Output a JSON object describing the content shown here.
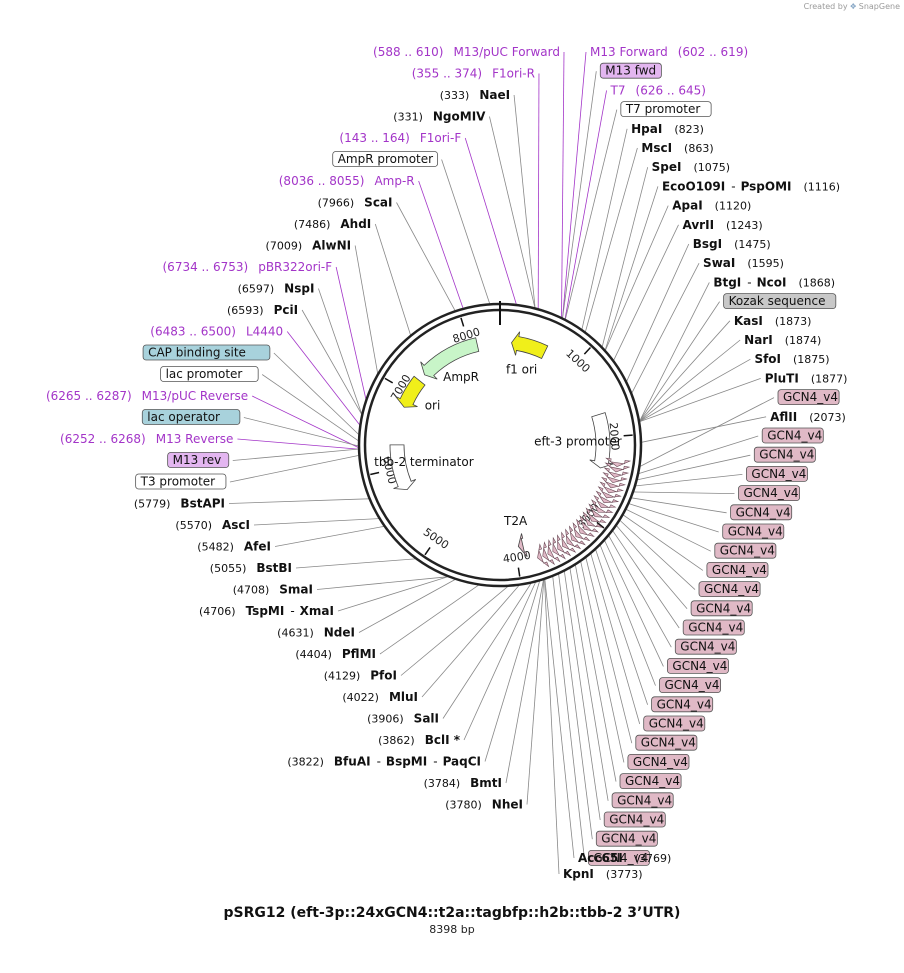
{
  "credit": {
    "text": "Created by",
    "brand": "SnapGene"
  },
  "title": "pSRG12 (eft-3p::24xGCN4::t2a::tagbfp::h2b::tbb-2 3’UTR)",
  "length_label": "8398 bp",
  "colors": {
    "enzyme": "#111111",
    "primer": "#a335c8",
    "feature_box": "#ffffff",
    "gcn4": "#e0b9c6",
    "cap": "#a8d2dc",
    "kozak": "#c8c8c8",
    "m13rev": "#e3b6f0",
    "ampr_arrow": "#c8f5c8",
    "ori_arrow": "#f0ef1a",
    "f1ori_arrow": "#f0ef1a"
  },
  "ticks": [
    {
      "bp": 1000,
      "label": "1000"
    },
    {
      "bp": 2000,
      "label": "2000"
    },
    {
      "bp": 3000,
      "label": "3000"
    },
    {
      "bp": 4000,
      "label": "4000"
    },
    {
      "bp": 5000,
      "label": "5000"
    },
    {
      "bp": 6000,
      "label": "6000"
    },
    {
      "bp": 7000,
      "label": "7000"
    },
    {
      "bp": 8000,
      "label": "8000"
    }
  ],
  "inner_features": [
    {
      "name": "AmpR",
      "label": "AmpR",
      "start": 7300,
      "end": 8100,
      "kind": "arrow",
      "dir": -1,
      "color": "#c8f5c8"
    },
    {
      "name": "ori",
      "label": "ori",
      "start": 6800,
      "end": 7200,
      "kind": "arrow",
      "dir": -1,
      "color": "#f0ef1a"
    },
    {
      "name": "f1 ori",
      "label": "f1 ori",
      "start": 150,
      "end": 600,
      "kind": "arrow",
      "dir": -1,
      "color": "#f0ef1a"
    },
    {
      "name": "eft-3 promoter",
      "label": "eft-3 promoter",
      "start": 1700,
      "end": 2400,
      "kind": "arrow",
      "dir": 1,
      "color": "#ffffff"
    },
    {
      "name": "T2A",
      "label": "T2A",
      "start": 3900,
      "end": 3960,
      "kind": "arrow",
      "dir": 1,
      "color": "#e0b9c6"
    },
    {
      "name": "tbb-2 terminator",
      "label": "tbb-2 terminator",
      "start": 5700,
      "end": 6300,
      "kind": "arrow",
      "dir": -1,
      "color": "#ffffff"
    }
  ],
  "right_labels": [
    {
      "label": "M13 Forward",
      "range": "(602 .. 619)",
      "bp": 610,
      "style": "primer"
    },
    {
      "label": "M13 fwd",
      "bp": 610,
      "style": "box",
      "fill": "#e3b6f0"
    },
    {
      "label": "T7",
      "range": "(626 .. 645)",
      "bp": 636,
      "style": "primer"
    },
    {
      "label": "T7 promoter",
      "bp": 640,
      "style": "box",
      "fill": "#ffffff"
    },
    {
      "label": "HpaI",
      "pos": "(823)",
      "bp": 823,
      "style": "enzyme"
    },
    {
      "label": "MscI",
      "pos": "(863)",
      "bp": 863,
      "style": "enzyme"
    },
    {
      "label": "SpeI",
      "pos": "(1075)",
      "bp": 1075,
      "style": "enzyme"
    },
    {
      "label": "EcoO109I",
      "label2": "PspOMI",
      "pos": "(1116)",
      "bp": 1116,
      "style": "enzyme"
    },
    {
      "label": "ApaI",
      "pos": "(1120)",
      "bp": 1120,
      "style": "enzyme"
    },
    {
      "label": "AvrII",
      "pos": "(1243)",
      "bp": 1243,
      "style": "enzyme"
    },
    {
      "label": "BsgI",
      "pos": "(1475)",
      "bp": 1475,
      "style": "enzyme"
    },
    {
      "label": "SwaI",
      "pos": "(1595)",
      "bp": 1595,
      "style": "enzyme"
    },
    {
      "label": "BtgI",
      "label2": "NcoI",
      "pos": "(1868)",
      "bp": 1868,
      "style": "enzyme"
    },
    {
      "label": "Kozak sequence",
      "bp": 1870,
      "style": "box",
      "fill": "#c8c8c8"
    },
    {
      "label": "KasI",
      "pos": "(1873)",
      "bp": 1873,
      "style": "enzyme"
    },
    {
      "label": "NarI",
      "pos": "(1874)",
      "bp": 1874,
      "style": "enzyme"
    },
    {
      "label": "SfoI",
      "pos": "(1875)",
      "bp": 1875,
      "style": "enzyme"
    },
    {
      "label": "PluTI",
      "pos": "(1877)",
      "bp": 1877,
      "style": "enzyme"
    },
    {
      "label": "GCN4_v4",
      "bp": 2300,
      "style": "box",
      "fill": "#e0b9c6"
    },
    {
      "label": "AflII",
      "pos": "(2073)",
      "bp": 2073,
      "style": "enzyme"
    },
    {
      "label": "GCN4_v4",
      "bp": 2370,
      "style": "box",
      "fill": "#e0b9c6"
    },
    {
      "label": "GCN4_v4",
      "bp": 2430,
      "style": "box",
      "fill": "#e0b9c6"
    },
    {
      "label": "GCN4_v4",
      "bp": 2490,
      "style": "box",
      "fill": "#e0b9c6"
    },
    {
      "label": "GCN4_v4",
      "bp": 2550,
      "style": "box",
      "fill": "#e0b9c6"
    },
    {
      "label": "GCN4_v4",
      "bp": 2610,
      "style": "box",
      "fill": "#e0b9c6"
    },
    {
      "label": "GCN4_v4",
      "bp": 2670,
      "style": "box",
      "fill": "#e0b9c6"
    },
    {
      "label": "GCN4_v4",
      "bp": 2730,
      "style": "box",
      "fill": "#e0b9c6"
    },
    {
      "label": "GCN4_v4",
      "bp": 2790,
      "style": "box",
      "fill": "#e0b9c6"
    },
    {
      "label": "GCN4_v4",
      "bp": 2850,
      "style": "box",
      "fill": "#e0b9c6"
    },
    {
      "label": "GCN4_v4",
      "bp": 2910,
      "style": "box",
      "fill": "#e0b9c6"
    },
    {
      "label": "GCN4_v4",
      "bp": 2970,
      "style": "box",
      "fill": "#e0b9c6"
    },
    {
      "label": "GCN4_v4",
      "bp": 3030,
      "style": "box",
      "fill": "#e0b9c6"
    },
    {
      "label": "GCN4_v4",
      "bp": 3090,
      "style": "box",
      "fill": "#e0b9c6"
    },
    {
      "label": "GCN4_v4",
      "bp": 3150,
      "style": "box",
      "fill": "#e0b9c6"
    },
    {
      "label": "GCN4_v4",
      "bp": 3210,
      "style": "box",
      "fill": "#e0b9c6"
    },
    {
      "label": "GCN4_v4",
      "bp": 3270,
      "style": "box",
      "fill": "#e0b9c6"
    },
    {
      "label": "GCN4_v4",
      "bp": 3330,
      "style": "box",
      "fill": "#e0b9c6"
    },
    {
      "label": "GCN4_v4",
      "bp": 3390,
      "style": "box",
      "fill": "#e0b9c6"
    },
    {
      "label": "GCN4_v4",
      "bp": 3450,
      "style": "box",
      "fill": "#e0b9c6"
    },
    {
      "label": "GCN4_v4",
      "bp": 3510,
      "style": "box",
      "fill": "#e0b9c6"
    },
    {
      "label": "GCN4_v4",
      "bp": 3570,
      "style": "box",
      "fill": "#e0b9c6"
    },
    {
      "label": "GCN4_v4",
      "bp": 3630,
      "style": "box",
      "fill": "#e0b9c6"
    },
    {
      "label": "GCN4_v4",
      "bp": 3690,
      "style": "box",
      "fill": "#e0b9c6"
    }
  ],
  "bottom_right_labels": [
    {
      "label": "Acc65I",
      "pos": "(3769)",
      "bp": 3769,
      "style": "enzyme"
    },
    {
      "label": "KpnI",
      "pos": "(3773)",
      "bp": 3773,
      "style": "enzyme"
    }
  ],
  "left_labels": [
    {
      "label": "M13/pUC Forward",
      "range": "(588 .. 610)",
      "bp": 599,
      "style": "primer"
    },
    {
      "label": "F1ori-R",
      "range": "(355 .. 374)",
      "bp": 364,
      "style": "primer"
    },
    {
      "label": "NaeI",
      "pos": "(333)",
      "bp": 333,
      "style": "enzyme"
    },
    {
      "label": "NgoMIV",
      "pos": "(331)",
      "bp": 331,
      "style": "enzyme"
    },
    {
      "label": "F1ori-F",
      "range": "(143 .. 164)",
      "bp": 153,
      "style": "primer"
    },
    {
      "label": "AmpR promoter",
      "bp": 8300,
      "style": "box",
      "fill": "#ffffff"
    },
    {
      "label": "Amp-R",
      "range": "(8036 .. 8055)",
      "bp": 8045,
      "style": "primer"
    },
    {
      "label": "ScaI",
      "pos": "(7966)",
      "bp": 7966,
      "style": "enzyme"
    },
    {
      "label": "AhdI",
      "pos": "(7486)",
      "bp": 7486,
      "style": "enzyme"
    },
    {
      "label": "AlwNI",
      "pos": "(7009)",
      "bp": 7009,
      "style": "enzyme"
    },
    {
      "label": "pBR322ori-F",
      "range": "(6734 .. 6753)",
      "bp": 6743,
      "style": "primer"
    },
    {
      "label": "NspI",
      "pos": "(6597)",
      "bp": 6597,
      "style": "enzyme"
    },
    {
      "label": "PciI",
      "pos": "(6593)",
      "bp": 6593,
      "style": "enzyme"
    },
    {
      "label": "L4440",
      "range": "(6483 .. 6500)",
      "bp": 6491,
      "style": "primer"
    },
    {
      "label": "CAP binding site",
      "bp": 6400,
      "style": "box",
      "fill": "#a8d2dc"
    },
    {
      "label": "lac promoter",
      "bp": 6340,
      "style": "box",
      "fill": "#ffffff"
    },
    {
      "label": "M13/pUC Reverse",
      "range": "(6265 .. 6287)",
      "bp": 6276,
      "style": "primer"
    },
    {
      "label": "lac operator",
      "bp": 6290,
      "style": "box",
      "fill": "#a8d2dc"
    },
    {
      "label": "M13 Reverse",
      "range": "(6252 .. 6268)",
      "bp": 6260,
      "style": "primer"
    },
    {
      "label": "M13 rev",
      "bp": 6260,
      "style": "box",
      "fill": "#e3b6f0"
    },
    {
      "label": "T3 promoter",
      "bp": 6200,
      "style": "box",
      "fill": "#ffffff"
    },
    {
      "label": "BstAPI",
      "pos": "(5779)",
      "bp": 5779,
      "style": "enzyme"
    },
    {
      "label": "AscI",
      "pos": "(5570)",
      "bp": 5570,
      "style": "enzyme"
    },
    {
      "label": "AfeI",
      "pos": "(5482)",
      "bp": 5482,
      "style": "enzyme"
    },
    {
      "label": "BstBI",
      "pos": "(5055)",
      "bp": 5055,
      "style": "enzyme"
    },
    {
      "label": "SmaI",
      "pos": "(4708)",
      "bp": 4708,
      "style": "enzyme"
    },
    {
      "label": "TspMI",
      "label2": "XmaI",
      "pos": "(4706)",
      "bp": 4706,
      "style": "enzyme"
    },
    {
      "label": "NdeI",
      "pos": "(4631)",
      "bp": 4631,
      "style": "enzyme"
    },
    {
      "label": "PflMI",
      "pos": "(4404)",
      "bp": 4404,
      "style": "enzyme"
    },
    {
      "label": "PfoI",
      "pos": "(4129)",
      "bp": 4129,
      "style": "enzyme"
    },
    {
      "label": "MluI",
      "pos": "(4022)",
      "bp": 4022,
      "style": "enzyme"
    },
    {
      "label": "SalI",
      "pos": "(3906)",
      "bp": 3906,
      "style": "enzyme"
    },
    {
      "label": "BclI *",
      "pos": "(3862)",
      "bp": 3862,
      "style": "enzyme"
    },
    {
      "label": "BfuAI",
      "label2": "BspMI",
      "label3": "PaqCI",
      "pos": "(3822)",
      "bp": 3822,
      "style": "enzyme"
    },
    {
      "label": "BmtI",
      "pos": "(3784)",
      "bp": 3784,
      "style": "enzyme"
    },
    {
      "label": "NheI",
      "pos": "(3780)",
      "bp": 3780,
      "style": "enzyme"
    }
  ]
}
